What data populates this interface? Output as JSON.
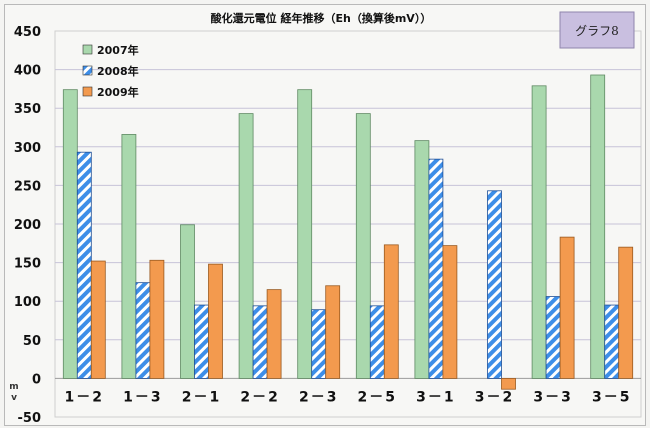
{
  "chart_data": {
    "type": "bar",
    "title": "酸化還元電位 経年推移（Eh（換算後mV））",
    "badge": "グラフ8",
    "ylabel": "mV",
    "ylim": [
      -50,
      450
    ],
    "yticks": [
      450,
      400,
      350,
      300,
      250,
      200,
      150,
      100,
      50,
      0,
      -50
    ],
    "grid": true,
    "legend_position": "top-left",
    "categories": [
      "1－2",
      "1－3",
      "2－1",
      "2－2",
      "2－3",
      "2－5",
      "3－1",
      "3－2",
      "3－3",
      "3－5"
    ],
    "series": [
      {
        "name": "2007年",
        "color": "#a9d8ad",
        "pattern": "solid",
        "values": [
          374,
          316,
          199,
          343,
          374,
          343,
          308,
          null,
          379,
          393
        ]
      },
      {
        "name": "2008年",
        "color": "#3d8ee8",
        "pattern": "hatched",
        "values": [
          293,
          124,
          95,
          94,
          89,
          94,
          284,
          243,
          106,
          95
        ]
      },
      {
        "name": "2009年",
        "color": "#f39a4e",
        "pattern": "solid",
        "values": [
          152,
          153,
          148,
          115,
          120,
          173,
          172,
          -14,
          183,
          170
        ]
      }
    ]
  }
}
